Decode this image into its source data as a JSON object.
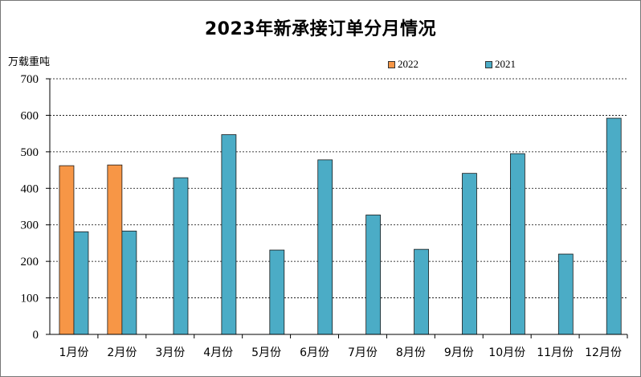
{
  "chart_data": {
    "type": "bar",
    "title": "2023年新承接订单分月情况",
    "unit_label": "万载重吨",
    "xlabel": "",
    "ylabel": "万载重吨",
    "ylim": [
      0,
      700
    ],
    "y_ticks": [
      0,
      100,
      200,
      300,
      400,
      500,
      600,
      700
    ],
    "grid": true,
    "legend_position": "top",
    "categories": [
      "1月份",
      "2月份",
      "3月份",
      "4月份",
      "5月份",
      "6月份",
      "7月份",
      "8月份",
      "9月份",
      "10月份",
      "11月份",
      "12月份"
    ],
    "series": [
      {
        "name": "2022",
        "color": "#F79646",
        "values": [
          462,
          464,
          null,
          null,
          null,
          null,
          null,
          null,
          null,
          null,
          null,
          null
        ]
      },
      {
        "name": "2021",
        "color": "#4BACC6",
        "values": [
          281,
          283,
          429,
          547,
          231,
          478,
          327,
          233,
          441,
          495,
          220,
          592
        ]
      }
    ]
  }
}
